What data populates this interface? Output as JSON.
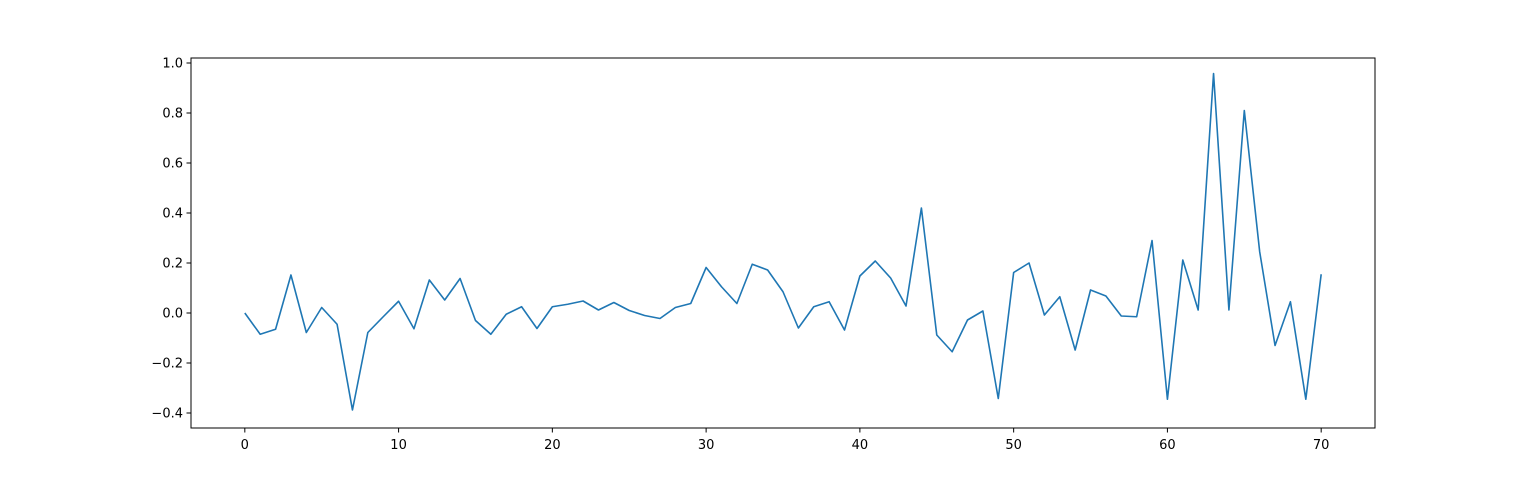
{
  "chart_data": {
    "type": "line",
    "title": "",
    "xlabel": "",
    "ylabel": "",
    "grid": false,
    "legend": "none",
    "xlim": [
      -3.5,
      73.5
    ],
    "ylim": [
      -0.46,
      1.02
    ],
    "xticks": [
      0,
      10,
      20,
      30,
      40,
      50,
      60,
      70
    ],
    "yticks": [
      -0.4,
      -0.2,
      0.0,
      0.2,
      0.4,
      0.6,
      0.8,
      1.0
    ],
    "x_tick_labels": [
      "0",
      "10",
      "20",
      "30",
      "40",
      "50",
      "60",
      "70"
    ],
    "y_tick_labels": [
      "−0.4",
      "−0.2",
      "0.0",
      "0.2",
      "0.4",
      "0.6",
      "0.8",
      "1.0"
    ],
    "series": [
      {
        "color": "#1f77b4",
        "x": [
          0,
          1,
          2,
          3,
          4,
          5,
          6,
          7,
          8,
          9,
          10,
          11,
          12,
          13,
          14,
          15,
          16,
          17,
          18,
          19,
          20,
          21,
          22,
          23,
          24,
          25,
          26,
          27,
          28,
          29,
          30,
          31,
          32,
          33,
          34,
          35,
          36,
          37,
          38,
          39,
          40,
          41,
          42,
          43,
          44,
          45,
          46,
          47,
          48,
          49,
          50,
          51,
          52,
          53,
          54,
          55,
          56,
          57,
          58,
          59,
          60,
          61,
          62,
          63,
          64,
          65,
          66,
          67,
          68,
          69,
          70
        ],
        "y": [
          0.0,
          -0.085,
          -0.065,
          0.152,
          -0.078,
          0.022,
          -0.045,
          -0.388,
          -0.078,
          -0.015,
          0.047,
          -0.063,
          0.132,
          0.052,
          0.138,
          -0.03,
          -0.085,
          -0.005,
          0.025,
          -0.062,
          0.025,
          0.035,
          0.048,
          0.012,
          0.042,
          0.01,
          -0.01,
          -0.022,
          0.022,
          0.038,
          0.182,
          0.105,
          0.038,
          0.195,
          0.172,
          0.085,
          -0.06,
          0.025,
          0.045,
          -0.068,
          0.148,
          0.208,
          0.14,
          0.028,
          0.42,
          -0.088,
          -0.155,
          -0.028,
          0.008,
          -0.342,
          0.162,
          0.2,
          -0.008,
          0.065,
          -0.148,
          0.092,
          0.068,
          -0.012,
          -0.015,
          0.29,
          -0.345,
          0.212,
          0.012,
          0.958,
          0.012,
          0.81,
          0.245,
          -0.13,
          0.045,
          -0.345,
          0.155
        ]
      }
    ]
  }
}
